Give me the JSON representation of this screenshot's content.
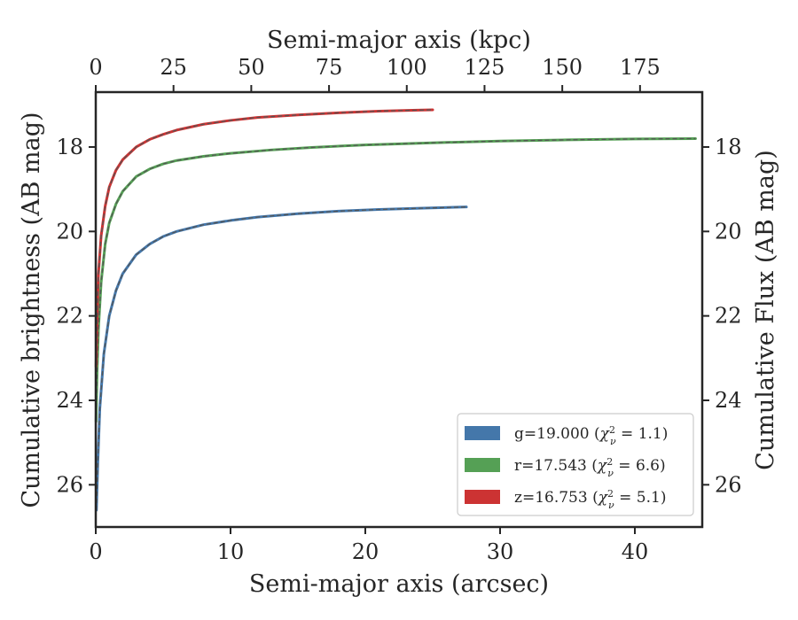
{
  "chart_data": {
    "type": "line",
    "xlabel": "Semi-major axis (arcsec)",
    "xlabel_top": "Semi-major axis (kpc)",
    "ylabel": "Cumulative brightness (AB mag)",
    "ylabel_right": "Cumulative Flux (AB mag)",
    "xlim": [
      0,
      45
    ],
    "ylim": [
      27,
      16.7
    ],
    "y_inverted": true,
    "xticks": [
      "0",
      "10",
      "20",
      "30",
      "40"
    ],
    "yticks": [
      "18",
      "20",
      "22",
      "24",
      "26"
    ],
    "top_xlim_kpc": [
      0,
      195
    ],
    "top_xticks": [
      "0",
      "25",
      "50",
      "75",
      "100",
      "125",
      "150",
      "175"
    ],
    "grid": false,
    "legend_position": "lower right",
    "series": [
      {
        "name": "g=19.000 (χ²ᵥ = 1.1)",
        "legend": {
          "prefix": "g=19.000 (",
          "chi": "χ",
          "sup": "2",
          "sub": "ν",
          "suffix": " = 1.1)"
        },
        "color": "#4477aa",
        "x": [
          0.05,
          0.15,
          0.3,
          0.6,
          1.0,
          1.5,
          2.0,
          3.0,
          4.0,
          5.0,
          6.0,
          8.0,
          10.0,
          12.0,
          15.0,
          18.0,
          21.0,
          24.0,
          27.5
        ],
        "y": [
          26.6,
          25.5,
          24.2,
          22.9,
          22.0,
          21.4,
          21.0,
          20.55,
          20.3,
          20.12,
          20.0,
          19.84,
          19.74,
          19.66,
          19.58,
          19.52,
          19.48,
          19.45,
          19.42
        ]
      },
      {
        "name": "r=17.543 (χ²ᵥ = 6.6)",
        "legend": {
          "prefix": "r=17.543 (",
          "chi": "χ",
          "sup": "2",
          "sub": "ν",
          "suffix": " = 6.6)"
        },
        "color": "#55a055",
        "x": [
          0.02,
          0.1,
          0.2,
          0.4,
          0.7,
          1.0,
          1.5,
          2.0,
          3.0,
          4.0,
          5.0,
          6.0,
          8.0,
          10.0,
          13.0,
          16.0,
          20.0,
          25.0,
          30.0,
          35.0,
          40.0,
          44.5
        ],
        "y": [
          24.5,
          23.3,
          22.3,
          21.2,
          20.3,
          19.8,
          19.35,
          19.05,
          18.7,
          18.52,
          18.4,
          18.32,
          18.22,
          18.15,
          18.07,
          18.01,
          17.95,
          17.9,
          17.86,
          17.83,
          17.81,
          17.8
        ]
      },
      {
        "name": "z=16.753 (χ²ᵥ = 5.1)",
        "legend": {
          "prefix": "z=16.753 (",
          "chi": "χ",
          "sup": "2",
          "sub": "ν",
          "suffix": " = 5.1)"
        },
        "color": "#cc3333",
        "x": [
          0.02,
          0.1,
          0.2,
          0.4,
          0.7,
          1.0,
          1.5,
          2.0,
          3.0,
          4.0,
          5.0,
          6.0,
          8.0,
          10.0,
          12.0,
          15.0,
          18.0,
          21.0,
          23.5,
          25.0
        ],
        "y": [
          23.2,
          22.0,
          21.0,
          20.1,
          19.4,
          18.95,
          18.55,
          18.3,
          18.0,
          17.82,
          17.7,
          17.6,
          17.46,
          17.37,
          17.3,
          17.24,
          17.19,
          17.15,
          17.13,
          17.12
        ]
      }
    ]
  }
}
